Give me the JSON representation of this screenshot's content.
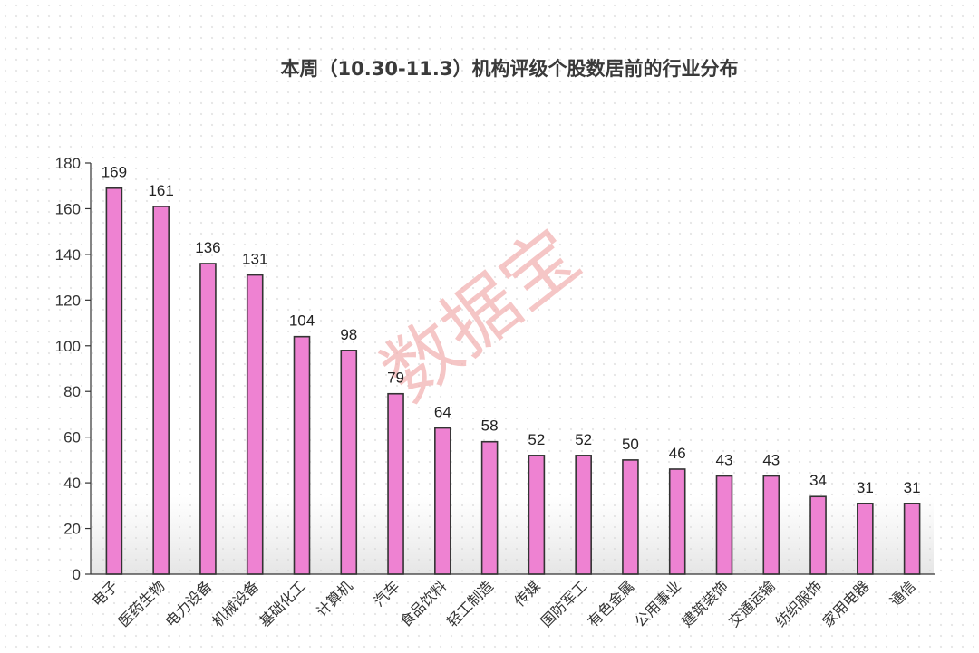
{
  "chart_data": {
    "type": "bar",
    "title": "本周（10.30-11.3）机构评级个股数居前的行业分布",
    "categories": [
      "电子",
      "医药生物",
      "电力设备",
      "机械设备",
      "基础化工",
      "计算机",
      "汽车",
      "食品饮料",
      "轻工制造",
      "传媒",
      "国防军工",
      "有色金属",
      "公用事业",
      "建筑装饰",
      "交通运输",
      "纺织服饰",
      "家用电器",
      "通信"
    ],
    "values": [
      169,
      161,
      136,
      131,
      104,
      98,
      79,
      64,
      58,
      52,
      52,
      50,
      46,
      43,
      43,
      34,
      31,
      31
    ],
    "xlabel": "",
    "ylabel": "",
    "ylim": [
      0,
      180
    ],
    "yticks": [
      0,
      20,
      40,
      60,
      80,
      100,
      120,
      140,
      160,
      180
    ],
    "grid": false,
    "legend": "none",
    "data_labels": true,
    "bar_color": "#ee82d2",
    "bar_edge_color": "#333333"
  },
  "watermark": "数据宝"
}
